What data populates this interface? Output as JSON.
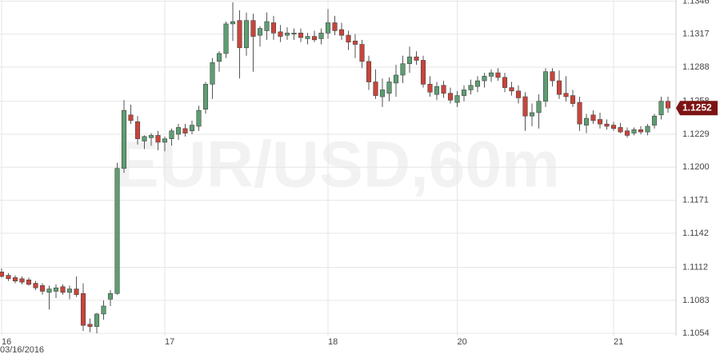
{
  "chart_data": {
    "type": "candlestick",
    "watermark": "EUR/USD,60m",
    "date_label": "03/16/2016",
    "categories": [
      "16",
      null,
      null,
      null,
      null,
      null,
      null,
      null,
      null,
      null,
      null,
      null,
      null,
      null,
      null,
      null,
      null,
      null,
      null,
      null,
      null,
      null,
      null,
      null,
      "17",
      null,
      null,
      null,
      null,
      null,
      null,
      null,
      null,
      null,
      null,
      null,
      null,
      null,
      null,
      null,
      null,
      null,
      null,
      null,
      null,
      null,
      null,
      null,
      "18",
      null,
      null,
      null,
      null,
      null,
      null,
      null,
      null,
      null,
      null,
      null,
      null,
      null,
      null,
      null,
      null,
      null,
      null,
      "20",
      null,
      null,
      null,
      null,
      null,
      null,
      null,
      null,
      null,
      null,
      null,
      null,
      null,
      null,
      null,
      null,
      null,
      null,
      null,
      null,
      null,
      null,
      "21",
      null,
      null,
      null,
      null,
      null,
      null,
      null,
      null
    ],
    "open": [
      1.1108,
      1.1105,
      1.1103,
      1.1102,
      1.1101,
      1.1098,
      1.1096,
      1.109,
      1.1091,
      1.1095,
      1.109,
      1.1093,
      1.1089,
      1.1062,
      1.106,
      1.1071,
      1.1084,
      1.1089,
      1.1199,
      1.1246,
      1.124,
      1.1223,
      1.1226,
      1.1228,
      1.1222,
      1.1225,
      1.1229,
      1.1234,
      1.1232,
      1.1236,
      1.1251,
      1.1273,
      1.1293,
      1.13,
      1.1326,
      1.1329,
      1.1305,
      1.1329,
      1.1316,
      1.132,
      1.1327,
      1.1319,
      1.1316,
      1.1317,
      1.1318,
      1.1313,
      1.1315,
      1.1313,
      1.1318,
      1.1327,
      1.1321,
      1.1316,
      1.1311,
      1.1308,
      1.1293,
      1.1275,
      1.1262,
      1.1265,
      1.1274,
      1.1281,
      1.1291,
      1.1297,
      1.1294,
      1.1273,
      1.1264,
      1.1272,
      1.1265,
      1.1257,
      1.1263,
      1.1268,
      1.1271,
      1.1276,
      1.128,
      1.1283,
      1.1279,
      1.127,
      1.1267,
      1.1262,
      1.1245,
      1.1248,
      1.1258,
      1.1284,
      1.1276,
      1.1265,
      1.1263,
      1.1257,
      1.1237,
      1.1246,
      1.1242,
      1.1238,
      1.1237,
      1.1235,
      1.1232,
      1.123,
      1.1233,
      1.1231,
      1.1237,
      1.1246,
      1.1258
    ],
    "high": [
      1.1111,
      1.1107,
      1.1105,
      1.1104,
      1.1103,
      1.11,
      1.1098,
      1.1096,
      1.1097,
      1.1097,
      1.1096,
      1.1104,
      1.1098,
      1.1067,
      1.1072,
      1.1083,
      1.1092,
      1.1204,
      1.1259,
      1.1255,
      1.1245,
      1.1228,
      1.123,
      1.1232,
      1.1227,
      1.1234,
      1.1238,
      1.1238,
      1.1241,
      1.1254,
      1.1275,
      1.1296,
      1.1302,
      1.1328,
      1.1345,
      1.1338,
      1.1336,
      1.1335,
      1.1324,
      1.1336,
      1.1333,
      1.1325,
      1.1323,
      1.1322,
      1.1322,
      1.1318,
      1.132,
      1.1322,
      1.1339,
      1.1333,
      1.1327,
      1.132,
      1.1317,
      1.1312,
      1.1298,
      1.1286,
      1.1278,
      1.1279,
      1.129,
      1.1298,
      1.1306,
      1.1302,
      1.1298,
      1.128,
      1.1275,
      1.1276,
      1.127,
      1.1267,
      1.1272,
      1.1277,
      1.128,
      1.1283,
      1.1286,
      1.1287,
      1.1283,
      1.1275,
      1.1272,
      1.1266,
      1.1256,
      1.1264,
      1.1287,
      1.1287,
      1.1285,
      1.128,
      1.1268,
      1.1262,
      1.1247,
      1.125,
      1.1248,
      1.1242,
      1.124,
      1.1239,
      1.1235,
      1.1235,
      1.1236,
      1.1238,
      1.1247,
      1.1262,
      1.1262
    ],
    "low": [
      1.1103,
      1.11,
      1.1098,
      1.1097,
      1.1096,
      1.1092,
      1.1088,
      1.1075,
      1.1085,
      1.1088,
      1.1084,
      1.1086,
      1.1056,
      1.1055,
      1.1054,
      1.1066,
      1.1078,
      1.1088,
      1.1195,
      1.1238,
      1.122,
      1.1216,
      1.1219,
      1.1215,
      1.1214,
      1.1219,
      1.1224,
      1.1227,
      1.1229,
      1.1232,
      1.1247,
      1.126,
      1.1284,
      1.1296,
      1.1311,
      1.1278,
      1.1298,
      1.1284,
      1.1306,
      1.1312,
      1.1312,
      1.131,
      1.1312,
      1.1312,
      1.131,
      1.1308,
      1.131,
      1.1308,
      1.1313,
      1.1316,
      1.1312,
      1.1303,
      1.1296,
      1.1287,
      1.1268,
      1.126,
      1.1253,
      1.1258,
      1.1262,
      1.1274,
      1.1283,
      1.129,
      1.127,
      1.1262,
      1.1259,
      1.1261,
      1.1256,
      1.1253,
      1.1258,
      1.1264,
      1.1266,
      1.127,
      1.1275,
      1.1276,
      1.1266,
      1.1263,
      1.1256,
      1.1232,
      1.1236,
      1.1234,
      1.1253,
      1.1271,
      1.126,
      1.1258,
      1.1253,
      1.1232,
      1.123,
      1.1238,
      1.1234,
      1.1233,
      1.1232,
      1.123,
      1.1226,
      1.1228,
      1.1229,
      1.1228,
      1.1234,
      1.1242,
      1.1248
    ],
    "close": [
      1.1104,
      1.1102,
      1.11,
      1.1099,
      1.1097,
      1.1094,
      1.1091,
      1.1093,
      1.1094,
      1.109,
      1.1093,
      1.1088,
      1.1061,
      1.106,
      1.1071,
      1.1078,
      1.1089,
      1.1199,
      1.125,
      1.1241,
      1.1225,
      1.1227,
      1.1228,
      1.1222,
      1.1225,
      1.1232,
      1.1235,
      1.123,
      1.1237,
      1.125,
      1.1273,
      1.1292,
      1.13,
      1.1326,
      1.1328,
      1.1305,
      1.1329,
      1.1315,
      1.1322,
      1.1328,
      1.1318,
      1.1315,
      1.1318,
      1.1318,
      1.1314,
      1.1315,
      1.1312,
      1.1318,
      1.1327,
      1.132,
      1.1316,
      1.131,
      1.1308,
      1.1293,
      1.1275,
      1.1263,
      1.1268,
      1.1275,
      1.1281,
      1.1291,
      1.1297,
      1.1294,
      1.1273,
      1.1266,
      1.1271,
      1.1265,
      1.1259,
      1.1263,
      1.1268,
      1.1272,
      1.1276,
      1.128,
      1.1283,
      1.1279,
      1.127,
      1.1267,
      1.1261,
      1.1245,
      1.1248,
      1.1258,
      1.1284,
      1.1276,
      1.1264,
      1.1262,
      1.1256,
      1.1238,
      1.1243,
      1.1241,
      1.1238,
      1.1236,
      1.1234,
      1.1231,
      1.1228,
      1.1233,
      1.1231,
      1.1236,
      1.1245,
      1.1258,
      1.1252
    ],
    "up_color": "#5e9e72",
    "down_color": "#c9443b",
    "ylim": [
      1.1052,
      1.1347
    ],
    "yticks": [
      1.1054,
      1.1083,
      1.1112,
      1.1142,
      1.1171,
      {
        "value": 1.12,
        "label": "1.1200"
      },
      1.1229,
      1.1258,
      1.1288,
      1.1317,
      1.1346
    ],
    "grid": true,
    "last_price": 1.1252
  }
}
